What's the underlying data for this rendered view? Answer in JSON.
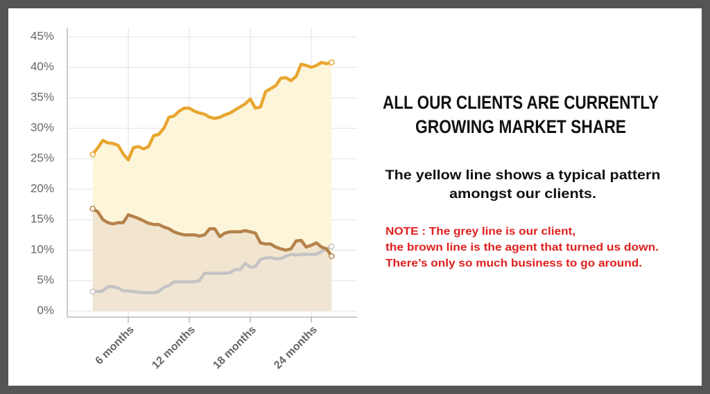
{
  "chart_data": {
    "type": "line",
    "x": [
      2.5,
      3,
      3.5,
      4,
      4.5,
      5,
      5.5,
      6,
      6.5,
      7,
      7.5,
      8,
      8.5,
      9,
      9.5,
      10,
      10.5,
      11,
      11.5,
      12,
      12.5,
      13,
      13.5,
      14,
      14.5,
      15,
      15.5,
      16,
      16.5,
      17,
      17.5,
      18,
      18.5,
      19,
      19.5,
      20,
      20.5,
      21,
      21.5,
      22,
      22.5,
      23,
      23.5,
      24,
      24.5,
      25,
      25.5,
      26
    ],
    "series": [
      {
        "color": "#e8a630",
        "area": "#fdf5da",
        "values": [
          25.7,
          26.8,
          28,
          27.6,
          27.5,
          27.2,
          25.8,
          24.8,
          26.8,
          27,
          26.6,
          27,
          28.8,
          29,
          30,
          31.8,
          32,
          32.8,
          33.3,
          33.3,
          32.8,
          32.5,
          32.3,
          31.8,
          31.6,
          31.8,
          32.2,
          32.5,
          33,
          33.5,
          34,
          34.8,
          33.3,
          33.5,
          36,
          36.5,
          37,
          38.2,
          38.3,
          37.8,
          38.5,
          40.5,
          40.3,
          40,
          40.3,
          40.8,
          40.6,
          40.8
        ]
      },
      {
        "color": "#b5824a",
        "area": "#f2e5cf",
        "values": [
          16.8,
          16.3,
          15,
          14.5,
          14.3,
          14.5,
          14.5,
          15.8,
          15.5,
          15.2,
          14.8,
          14.4,
          14.2,
          14.2,
          13.8,
          13.5,
          13,
          12.7,
          12.5,
          12.5,
          12.5,
          12.3,
          12.5,
          13.5,
          13.5,
          12.2,
          12.8,
          13,
          13,
          13,
          13.2,
          13,
          12.8,
          11.2,
          11,
          11,
          10.5,
          10.2,
          10,
          10.2,
          11.5,
          11.6,
          10.5,
          10.8,
          11.2,
          10.5,
          10.2,
          9
        ]
      },
      {
        "color": "#c4c4c4",
        "area": "#efe6da",
        "values": [
          3.2,
          3.2,
          3.3,
          4,
          4,
          3.8,
          3.3,
          3.3,
          3.2,
          3.1,
          3,
          3,
          3,
          3.2,
          3.9,
          4.2,
          4.8,
          4.8,
          4.8,
          4.8,
          4.8,
          5,
          6.2,
          6.2,
          6.2,
          6.2,
          6.2,
          6.3,
          6.8,
          6.8,
          7.8,
          7.2,
          7.3,
          8.5,
          8.7,
          8.8,
          8.6,
          8.6,
          9,
          9.3,
          9.2,
          9.3,
          9.3,
          9.3,
          9.3,
          9.8,
          10.2,
          10.6
        ]
      }
    ],
    "xlim": [
      0,
      28.5
    ],
    "xticks": [
      {
        "value": 6,
        "label": "6 months"
      },
      {
        "value": 12,
        "label": "12 months"
      },
      {
        "value": 18,
        "label": "18 months"
      },
      {
        "value": 24,
        "label": "24 months"
      }
    ],
    "ylim": [
      -1,
      46.5
    ],
    "yticks": [
      {
        "value": 0,
        "label": "0%"
      },
      {
        "value": 5,
        "label": "5%"
      },
      {
        "value": 10,
        "label": "10%"
      },
      {
        "value": 15,
        "label": "15%"
      },
      {
        "value": 20,
        "label": "20%"
      },
      {
        "value": 25,
        "label": "25%"
      },
      {
        "value": 30,
        "label": "30%"
      },
      {
        "value": 35,
        "label": "35%"
      },
      {
        "value": 40,
        "label": "40%"
      },
      {
        "value": 45,
        "label": "45%"
      }
    ],
    "grid": true
  },
  "text": {
    "heading": [
      "ALL OUR CLIENTS ARE CURRENTLY",
      "GROWING MARKET SHARE"
    ],
    "description": [
      "The yellow line shows a typical pattern",
      "amongst our clients."
    ],
    "note": [
      "NOTE : The grey line is our client,",
      "the brown line is the agent that turned us down.",
      "There’s only so much business to go around."
    ]
  }
}
